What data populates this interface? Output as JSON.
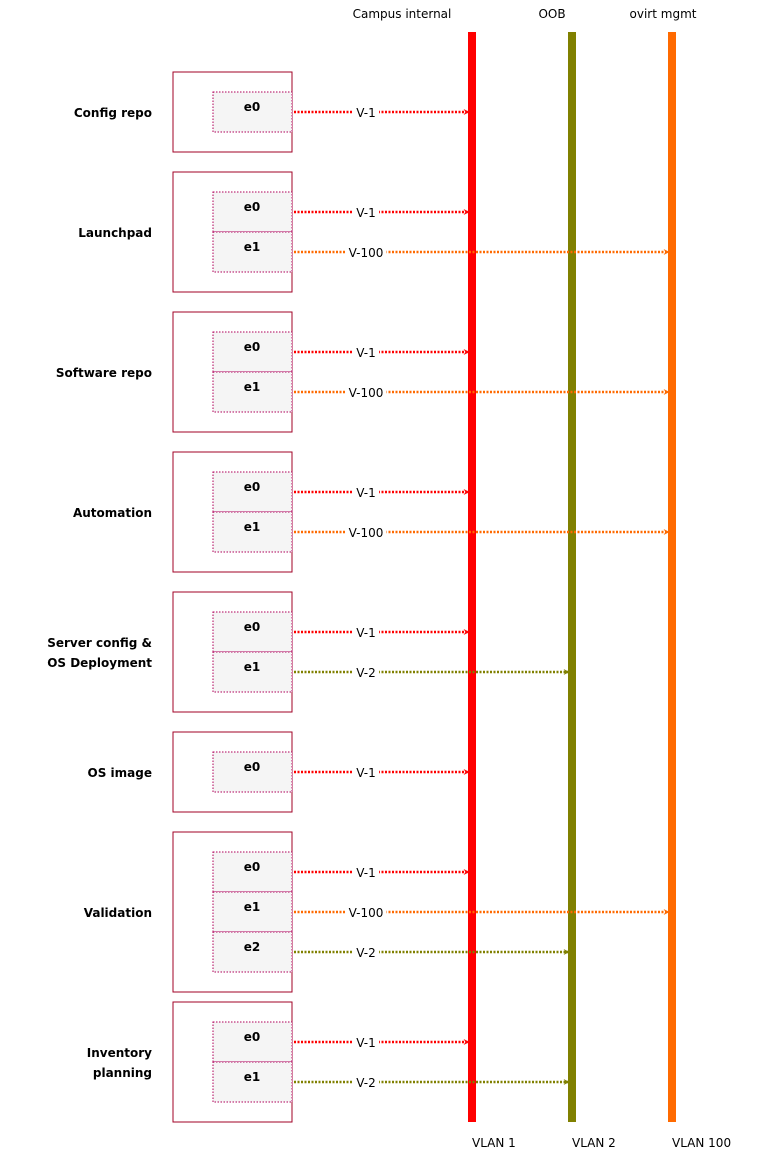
{
  "colors": {
    "vlan1": "#ff0000",
    "vlan2": "#808000",
    "vlan100": "#ff6a00",
    "node_border": "#a20025",
    "iface_border": "#b0005a",
    "iface_fill": "#f5f5f5"
  },
  "vlans": [
    {
      "id": "vlan1",
      "top_label": "Campus internal",
      "bottom_label": "VLAN 1",
      "color": "#ff0000"
    },
    {
      "id": "vlan2",
      "top_label": "OOB",
      "bottom_label": "VLAN 2",
      "color": "#808000"
    },
    {
      "id": "vlan100",
      "top_label": "ovirt mgmt",
      "bottom_label": "VLAN 100",
      "color": "#ff6a00"
    }
  ],
  "nodes": [
    {
      "label": [
        "Config repo"
      ],
      "interfaces": [
        {
          "name": "e0",
          "link": "V-1",
          "vlan": "vlan1"
        }
      ]
    },
    {
      "label": [
        "Launchpad"
      ],
      "interfaces": [
        {
          "name": "e0",
          "link": "V-1",
          "vlan": "vlan1"
        },
        {
          "name": "e1",
          "link": "V-100",
          "vlan": "vlan100"
        }
      ]
    },
    {
      "label": [
        "Software repo"
      ],
      "interfaces": [
        {
          "name": "e0",
          "link": "V-1",
          "vlan": "vlan1"
        },
        {
          "name": "e1",
          "link": "V-100",
          "vlan": "vlan100"
        }
      ]
    },
    {
      "label": [
        "Automation"
      ],
      "interfaces": [
        {
          "name": "e0",
          "link": "V-1",
          "vlan": "vlan1"
        },
        {
          "name": "e1",
          "link": "V-100",
          "vlan": "vlan100"
        }
      ]
    },
    {
      "label": [
        "Server config &",
        "OS Deployment"
      ],
      "interfaces": [
        {
          "name": "e0",
          "link": "V-1",
          "vlan": "vlan1"
        },
        {
          "name": "e1",
          "link": "V-2",
          "vlan": "vlan2"
        }
      ]
    },
    {
      "label": [
        "OS image"
      ],
      "interfaces": [
        {
          "name": "e0",
          "link": "V-1",
          "vlan": "vlan1"
        }
      ]
    },
    {
      "label": [
        "Validation"
      ],
      "interfaces": [
        {
          "name": "e0",
          "link": "V-1",
          "vlan": "vlan1"
        },
        {
          "name": "e1",
          "link": "V-100",
          "vlan": "vlan100"
        },
        {
          "name": "e2",
          "link": "V-2",
          "vlan": "vlan2"
        }
      ]
    },
    {
      "label": [
        "Inventory",
        "planning"
      ],
      "interfaces": [
        {
          "name": "e0",
          "link": "V-1",
          "vlan": "vlan1"
        },
        {
          "name": "e1",
          "link": "V-2",
          "vlan": "vlan2"
        }
      ]
    }
  ]
}
